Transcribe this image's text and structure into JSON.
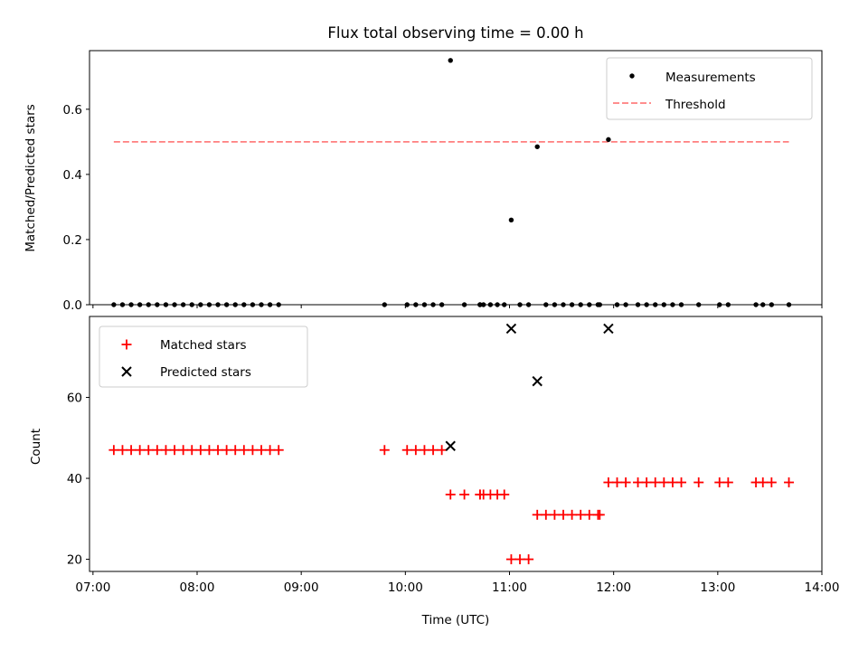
{
  "chart_data": [
    {
      "type": "scatter",
      "title": "Flux total observing time = 0.00 h",
      "ylabel": "Matched/Predicted stars",
      "xlabel": "",
      "ylim": [
        0,
        0.78
      ],
      "yticks": [
        0.0,
        0.2,
        0.4,
        0.6
      ],
      "ytick_labels": [
        "0.0",
        "0.2",
        "0.4",
        "0.6"
      ],
      "x_type": "time",
      "legend_position": "top-right",
      "series": [
        {
          "name": "Measurements",
          "kind": "scatter",
          "marker": "dot",
          "color": "#000000",
          "x": [
            "07:12",
            "07:17",
            "07:22",
            "07:27",
            "07:32",
            "07:37",
            "07:42",
            "07:47",
            "07:52",
            "07:57",
            "08:02",
            "08:07",
            "08:12",
            "08:17",
            "08:22",
            "08:27",
            "08:32",
            "08:37",
            "08:42",
            "08:47",
            "09:48",
            "10:01",
            "10:06",
            "10:11",
            "10:16",
            "10:21",
            "10:26",
            "10:34",
            "10:43",
            "10:43",
            "10:45",
            "10:49",
            "10:53",
            "10:57",
            "11:01",
            "11:06",
            "11:11",
            "11:16",
            "11:21",
            "11:26",
            "11:31",
            "11:36",
            "11:41",
            "11:46",
            "11:51",
            "11:52",
            "11:57",
            "12:02",
            "12:07",
            "12:14",
            "12:19",
            "12:24",
            "12:29",
            "12:34",
            "12:39",
            "12:49",
            "13:01",
            "13:06",
            "13:22",
            "13:26",
            "13:31",
            "13:41"
          ],
          "y": [
            0,
            0,
            0,
            0,
            0,
            0,
            0,
            0,
            0,
            0,
            0,
            0,
            0,
            0,
            0,
            0,
            0,
            0,
            0,
            0,
            0,
            0,
            0,
            0,
            0,
            0,
            0.75,
            0,
            0,
            0,
            0,
            0,
            0,
            0,
            0.26,
            0,
            0,
            0.485,
            0,
            0,
            0,
            0,
            0,
            0,
            0,
            0,
            0.507,
            0,
            0,
            0,
            0,
            0,
            0,
            0,
            0,
            0,
            0,
            0,
            0,
            0,
            0,
            0
          ]
        },
        {
          "name": "Threshold",
          "kind": "line",
          "style": "dashed",
          "color": "#ff7f7f",
          "x": [
            "07:12",
            "13:41"
          ],
          "y": [
            0.5,
            0.5
          ]
        }
      ]
    },
    {
      "type": "scatter",
      "title": "",
      "xlabel": "Time (UTC)",
      "ylabel": "Count",
      "xlim": [
        "06:58",
        "14:00"
      ],
      "ylim": [
        17,
        80
      ],
      "yticks": [
        20,
        40,
        60
      ],
      "ytick_labels": [
        "20",
        "40",
        "60"
      ],
      "xticks": [
        "07:00",
        "08:00",
        "09:00",
        "10:00",
        "11:00",
        "12:00",
        "13:00",
        "14:00"
      ],
      "xtick_labels": [
        "07:00",
        "08:00",
        "09:00",
        "10:00",
        "11:00",
        "12:00",
        "13:00",
        "14:00"
      ],
      "x_type": "time",
      "legend_position": "top-left",
      "series": [
        {
          "name": "Matched stars",
          "kind": "scatter",
          "marker": "plus",
          "color": "#ff0000",
          "x": [
            "07:12",
            "07:17",
            "07:22",
            "07:27",
            "07:32",
            "07:37",
            "07:42",
            "07:47",
            "07:52",
            "07:57",
            "08:02",
            "08:07",
            "08:12",
            "08:17",
            "08:22",
            "08:27",
            "08:32",
            "08:37",
            "08:42",
            "08:47",
            "09:48",
            "10:01",
            "10:06",
            "10:11",
            "10:16",
            "10:21",
            "10:26",
            "10:34",
            "10:43",
            "10:43",
            "10:45",
            "10:49",
            "10:53",
            "10:57",
            "11:01",
            "11:06",
            "11:11",
            "11:16",
            "11:21",
            "11:26",
            "11:31",
            "11:36",
            "11:41",
            "11:46",
            "11:51",
            "11:52",
            "11:57",
            "12:02",
            "12:07",
            "12:14",
            "12:19",
            "12:24",
            "12:29",
            "12:34",
            "12:39",
            "12:49",
            "13:01",
            "13:06",
            "13:22",
            "13:26",
            "13:31",
            "13:41"
          ],
          "y": [
            47,
            47,
            47,
            47,
            47,
            47,
            47,
            47,
            47,
            47,
            47,
            47,
            47,
            47,
            47,
            47,
            47,
            47,
            47,
            47,
            47,
            47,
            47,
            47,
            47,
            47,
            36,
            36,
            36,
            36,
            36,
            36,
            36,
            36,
            20,
            20,
            20,
            31,
            31,
            31,
            31,
            31,
            31,
            31,
            31,
            31,
            39,
            39,
            39,
            39,
            39,
            39,
            39,
            39,
            39,
            39,
            39,
            39,
            39,
            39,
            39,
            39
          ]
        },
        {
          "name": "Predicted stars",
          "kind": "scatter",
          "marker": "x",
          "color": "#000000",
          "x": [
            "10:26",
            "11:01",
            "11:16",
            "11:57"
          ],
          "y": [
            48,
            77,
            64,
            77
          ]
        }
      ]
    }
  ]
}
